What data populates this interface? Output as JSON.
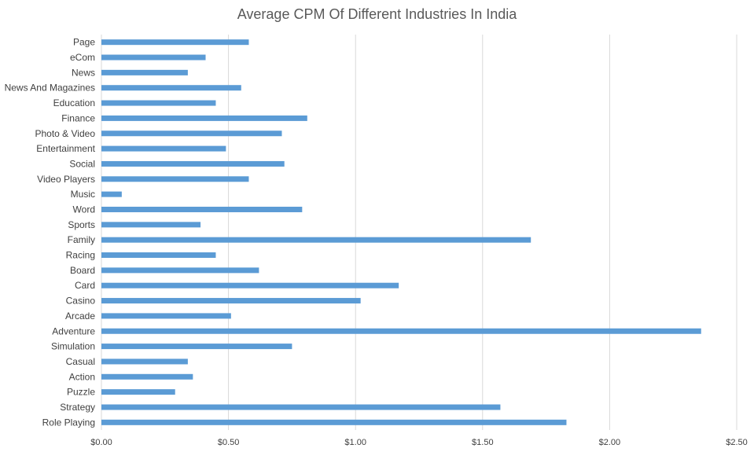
{
  "chart_data": {
    "type": "bar",
    "orientation": "horizontal",
    "title": "Average CPM Of Different Industries In India",
    "xlabel": "",
    "ylabel": "",
    "categories": [
      "Page",
      "eCom",
      "News",
      "News And Magazines",
      "Education",
      "Finance",
      "Photo & Video",
      "Entertainment",
      "Social",
      "Video Players",
      "Music",
      "Word",
      "Sports",
      "Family",
      "Racing",
      "Board",
      "Card",
      "Casino",
      "Arcade",
      "Adventure",
      "Simulation",
      "Casual",
      "Action",
      "Puzzle",
      "Strategy",
      "Role Playing"
    ],
    "values": [
      0.58,
      0.41,
      0.34,
      0.55,
      0.45,
      0.81,
      0.71,
      0.49,
      0.72,
      0.58,
      0.08,
      0.79,
      0.39,
      1.69,
      0.45,
      0.62,
      1.17,
      1.02,
      0.51,
      2.36,
      0.75,
      0.34,
      0.36,
      0.29,
      1.57,
      1.83
    ],
    "xlim": [
      0,
      2.5
    ],
    "x_ticks": [
      0,
      0.5,
      1.0,
      1.5,
      2.0,
      2.5
    ],
    "x_tick_labels": [
      "$0.00",
      "$0.50",
      "$1.00",
      "$1.50",
      "$2.00",
      "$2.50"
    ],
    "grid": true,
    "legend": "none",
    "bar_color": "#5b9bd5",
    "grid_color": "#d9d9d9"
  }
}
